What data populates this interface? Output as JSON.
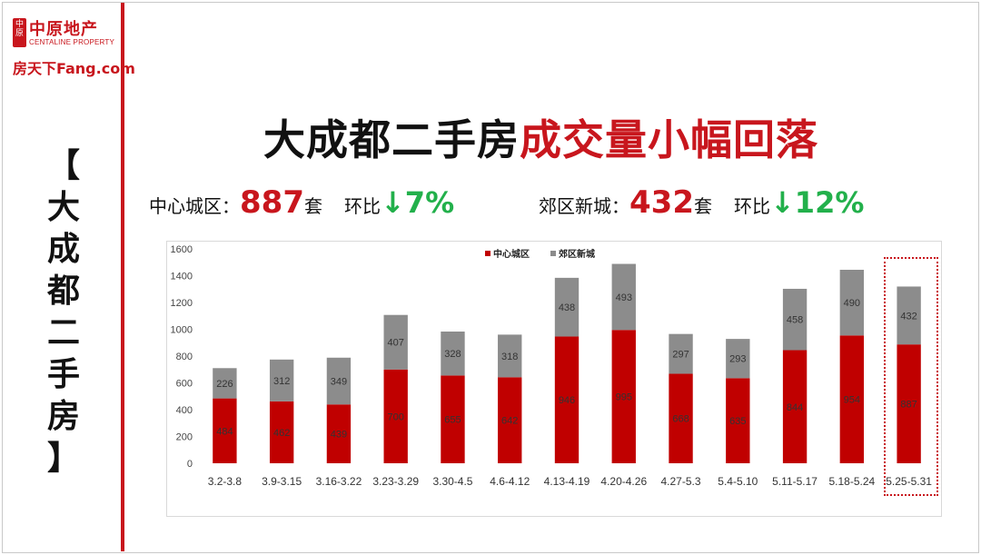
{
  "branding": {
    "centaline_badge": "中原",
    "centaline_cn": "中原地产",
    "centaline_en": "CENTALINE PROPERTY",
    "fang_logo": "房天下Fang.com"
  },
  "side_title": [
    "【",
    "大",
    "成",
    "都",
    "二",
    "手",
    "房",
    "】"
  ],
  "headline": {
    "black_part": "大成都二手房",
    "red_part": "成交量小幅回落"
  },
  "stats": {
    "center": {
      "label": "中心城区：",
      "value": "887",
      "unit": "套",
      "mom_label": "环比",
      "mom_change": "↓7%"
    },
    "suburb": {
      "label": "郊区新城：",
      "value": "432",
      "unit": "套",
      "mom_label": "环比",
      "mom_change": "↓12%"
    }
  },
  "colors": {
    "accent": "#c8161d",
    "suburb": "#8c8c8c",
    "down": "#22b04b"
  },
  "chart_data": {
    "type": "bar",
    "stacked": true,
    "categories": [
      "3.2-3.8",
      "3.9-3.15",
      "3.16-3.22",
      "3.23-3.29",
      "3.30-4.5",
      "4.6-4.12",
      "4.13-4.19",
      "4.20-4.26",
      "4.27-5.3",
      "5.4-5.10",
      "5.11-5.17",
      "5.18-5.24",
      "5.25-5.31"
    ],
    "series": [
      {
        "name": "中心城区",
        "color": "#c00000",
        "values": [
          484,
          462,
          439,
          700,
          655,
          642,
          946,
          995,
          668,
          635,
          844,
          954,
          887
        ]
      },
      {
        "name": "郊区新城",
        "color": "#8c8c8c",
        "values": [
          226,
          312,
          349,
          407,
          328,
          318,
          438,
          493,
          297,
          293,
          458,
          490,
          432
        ]
      }
    ],
    "ylim": [
      0,
      1600
    ],
    "yticks": [
      "0",
      "200",
      "400",
      "600",
      "800",
      "1000",
      "1200",
      "1400",
      "1600"
    ],
    "legend": "top-center",
    "grid": false,
    "highlighted_category": "5.25-5.31"
  }
}
